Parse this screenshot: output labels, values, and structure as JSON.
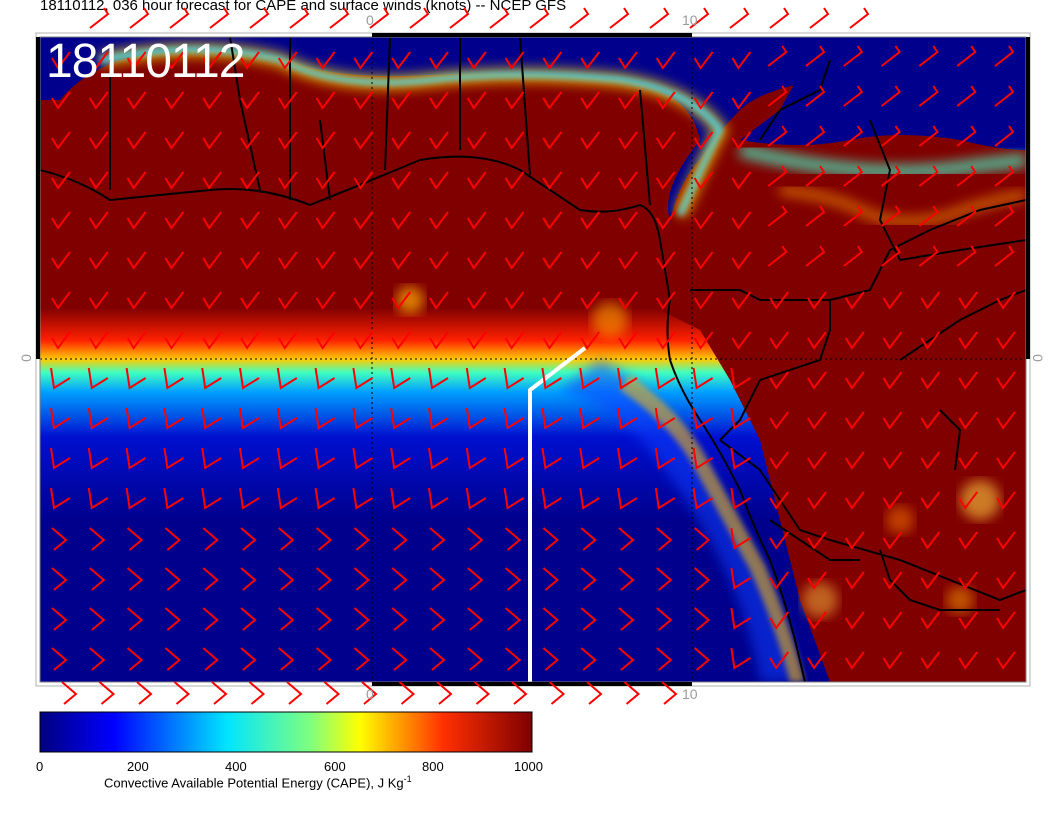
{
  "title": "18110112, 036 hour forecast for CAPE and surface winds (knots) -- NCEP GFS",
  "stamp": "18110112",
  "axis_ticks": {
    "top": [
      "0",
      "10"
    ],
    "bottom": [
      "0",
      "10"
    ],
    "left": [
      "0"
    ],
    "right": [
      "0"
    ]
  },
  "colorbar": {
    "labels": [
      "0",
      "200",
      "400",
      "600",
      "800",
      "1000"
    ],
    "title": "Convective Available Potential Energy (CAPE), J Kg",
    "unit_sup": "-1",
    "colors": [
      "#00008f",
      "#0000ff",
      "#00ffff",
      "#ffff00",
      "#ff0000",
      "#800000"
    ]
  },
  "colors": {
    "barb": "#ff0000",
    "coast": "#000000",
    "track": "#ffffff",
    "low_cape": "#00007f",
    "high_cape": "#800000"
  }
}
